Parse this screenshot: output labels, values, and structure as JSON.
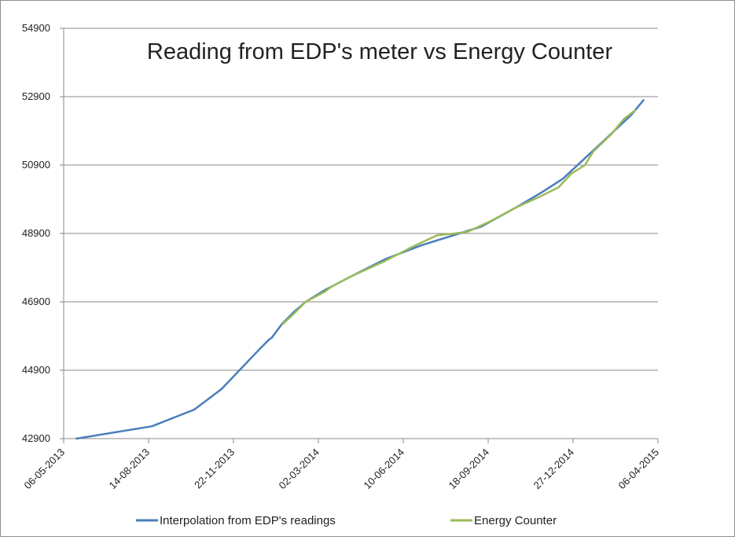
{
  "chart_data": {
    "type": "line",
    "title": "Reading from EDP's meter vs Energy Counter",
    "xlabel": "",
    "ylabel": "",
    "x_axis": "date",
    "xlim": [
      "06-05-2013",
      "06-04-2015"
    ],
    "x_ticks": [
      "06-05-2013",
      "14-08-2013",
      "22-11-2013",
      "02-03-2014",
      "10-06-2014",
      "18-09-2014",
      "27-12-2014",
      "06-04-2015"
    ],
    "ylim": [
      42900,
      54900
    ],
    "y_ticks": [
      "54900",
      "52900",
      "50900",
      "48900",
      "46900",
      "44900",
      "42900"
    ],
    "grid": "horizontal",
    "legend": "bottom",
    "series": [
      {
        "name": "Interpolation from EDP's readings",
        "color": "#4a7ebb",
        "points": [
          [
            "2013-05-21",
            42900
          ],
          [
            "2013-08-18",
            43260
          ],
          [
            "2013-10-07",
            43750
          ],
          [
            "2013-11-08",
            44350
          ],
          [
            "2013-12-24",
            45550
          ],
          [
            "2014-01-03",
            45800
          ],
          [
            "2014-01-06",
            45850
          ],
          [
            "2014-01-12",
            46050
          ],
          [
            "2014-01-18",
            46250
          ],
          [
            "2014-02-01",
            46600
          ],
          [
            "2014-02-15",
            46900
          ],
          [
            "2014-03-10",
            47250
          ],
          [
            "2014-04-10",
            47650
          ],
          [
            "2014-05-20",
            48150
          ],
          [
            "2014-07-01",
            48550
          ],
          [
            "2014-08-15",
            48900
          ],
          [
            "2014-09-10",
            49100
          ],
          [
            "2014-10-20",
            49650
          ],
          [
            "2014-11-20",
            50100
          ],
          [
            "2014-12-15",
            50500
          ],
          [
            "2015-01-10",
            51100
          ],
          [
            "2015-02-05",
            51700
          ],
          [
            "2015-03-05",
            52350
          ],
          [
            "2015-03-20",
            52800
          ]
        ]
      },
      {
        "name": "Energy Counter",
        "color": "#9bbb59",
        "points": [
          [
            "2014-01-19",
            46250
          ],
          [
            "2014-02-01",
            46550
          ],
          [
            "2014-02-15",
            46900
          ],
          [
            "2014-03-10",
            47200
          ],
          [
            "2014-03-15",
            47300
          ],
          [
            "2014-03-20",
            47380
          ],
          [
            "2014-04-10",
            47650
          ],
          [
            "2014-05-20",
            48100
          ],
          [
            "2014-06-20",
            48500
          ],
          [
            "2014-07-20",
            48850
          ],
          [
            "2014-08-10",
            48900
          ],
          [
            "2014-08-25",
            48950
          ],
          [
            "2014-09-20",
            49250
          ],
          [
            "2014-10-20",
            49650
          ],
          [
            "2014-11-20",
            50000
          ],
          [
            "2014-12-10",
            50250
          ],
          [
            "2014-12-25",
            50650
          ],
          [
            "2015-01-10",
            50900
          ],
          [
            "2015-01-20",
            51300
          ],
          [
            "2015-02-10",
            51800
          ],
          [
            "2015-02-25",
            52250
          ],
          [
            "2015-03-10",
            52500
          ]
        ]
      }
    ]
  }
}
